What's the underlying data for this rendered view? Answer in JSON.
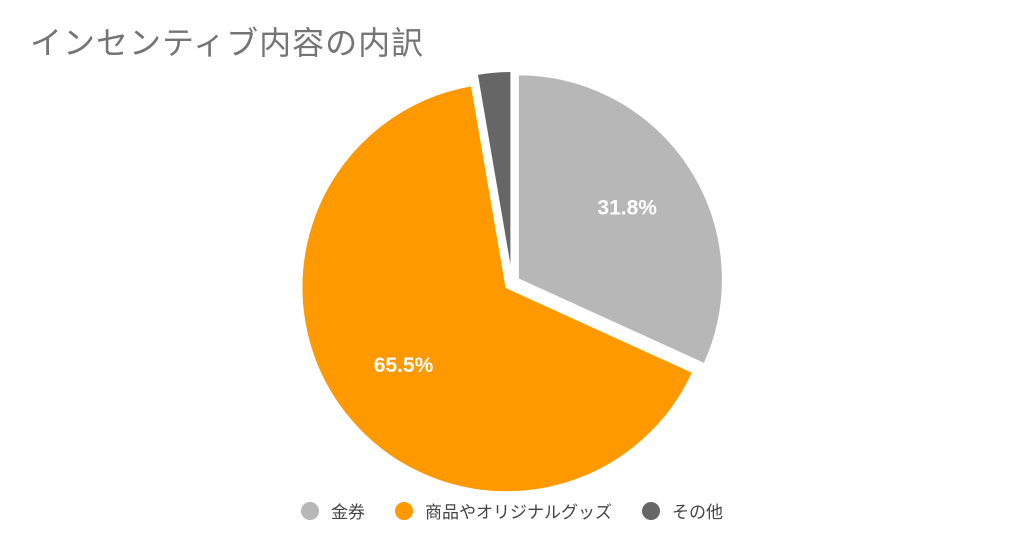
{
  "chart_data": {
    "type": "pie",
    "title": "インセンティブ内容の内訳",
    "slices": [
      {
        "name": "金券",
        "value": 31.8,
        "label": "31.8%",
        "color": "#b7b7b7"
      },
      {
        "name": "商品やオリジナルグッズ",
        "value": 65.5,
        "label": "65.5%",
        "color": "#ff9900"
      },
      {
        "name": "その他",
        "value": 2.7,
        "label": "",
        "color": "#666666"
      }
    ],
    "start_angle": "12 o'clock",
    "direction": "clockwise",
    "exploded": true,
    "legend_position": "bottom"
  }
}
